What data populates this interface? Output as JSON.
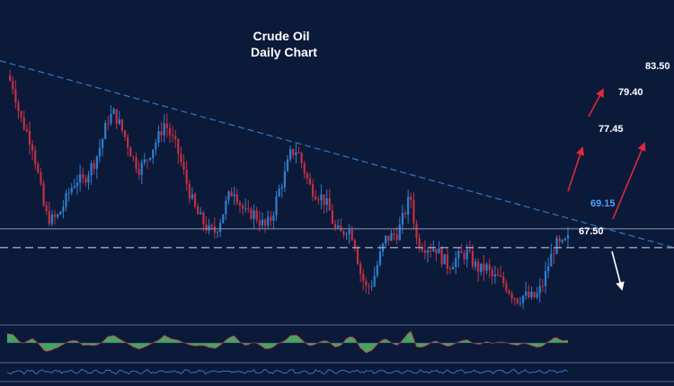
{
  "chart_data": {
    "type": "line",
    "title_lines": [
      "Crude Oil",
      "Daily Chart"
    ],
    "y_range": [
      61.5,
      84.5
    ],
    "price_series_shape": [
      82.6,
      81.6,
      79.0,
      77.8,
      76.5,
      73.6,
      70.5,
      69.9,
      70.2,
      71.3,
      72.6,
      73.5,
      73.3,
      74.3,
      75.2,
      76.8,
      78.8,
      79.3,
      78.1,
      76.8,
      75.3,
      74.4,
      75.1,
      76.2,
      77.2,
      78.5,
      77.2,
      76.1,
      74.1,
      72.2,
      70.6,
      69.8,
      69.0,
      68.9,
      70.2,
      71.8,
      72.7,
      71.3,
      70.3,
      70.6,
      69.9,
      69.3,
      70.2,
      72.3,
      73.8,
      75.8,
      76.1,
      74.5,
      72.9,
      72.3,
      71.9,
      71.0,
      69.1,
      68.7,
      69.3,
      68.4,
      65.4,
      63.9,
      64.5,
      66.5,
      68.2,
      68.5,
      68.8,
      70.4,
      72.1,
      68.1,
      67.7,
      67.5,
      67.5,
      66.6,
      65.9,
      66.4,
      66.8,
      67.0,
      66.1,
      65.5,
      65.8,
      64.9,
      64.8,
      64.3,
      63.5,
      63.0,
      63.3,
      63.1,
      63.2,
      64.3,
      66.2,
      67.8,
      67.6,
      68.2
    ],
    "levels": [
      {
        "label": "83.50",
        "value": 83.5,
        "color": "#ffffff"
      },
      {
        "label": "79.40",
        "value": 79.4,
        "color": "#ffffff"
      },
      {
        "label": "77.45",
        "value": 77.45,
        "color": "#ffffff"
      },
      {
        "label": "69.15",
        "value": 69.15,
        "color": "#4aa3ff"
      },
      {
        "label": "67.50",
        "value": 67.5,
        "color": "#ffffff"
      }
    ],
    "trendline": {
      "from_value": 83.9,
      "to_value": 67.5
    },
    "colors": {
      "background": "#0c1a3a",
      "candle_up": "#2f7fd0",
      "candle_down": "#c23040",
      "trendline": "#2f78c4",
      "level_line": "#8a98b8",
      "arrow_up": "#e0283a",
      "arrow_down": "#ffffff",
      "oscillator_fill": "#4fb06a",
      "oscillator_line": "#c23040",
      "indicator_line": "#3b8be0"
    },
    "grid": false
  }
}
